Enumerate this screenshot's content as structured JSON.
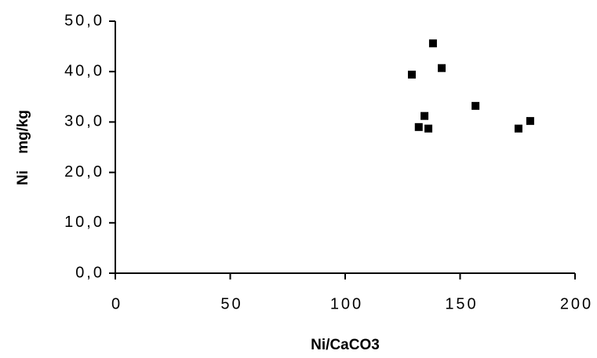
{
  "chart_data": {
    "type": "scatter",
    "x_label": "Ni/CaCO3",
    "y_label": "Ni    mg/kg",
    "series": [
      {
        "color": "#000000",
        "x": [
          129,
          138.2,
          142,
          132,
          134.5,
          136.2,
          156.7,
          175.4,
          180.5
        ],
        "values": [
          39.4,
          45.6,
          40.7,
          29.0,
          31.2,
          28.7,
          33.2,
          28.7,
          30.2
        ]
      }
    ],
    "xlim": [
      0,
      200
    ],
    "xticks": [
      0,
      50,
      100,
      150,
      200
    ],
    "ylim": [
      0,
      50
    ],
    "yticks": [
      {
        "value": 0,
        "label": "0,0"
      },
      {
        "value": 10,
        "label": "10,0"
      },
      {
        "value": 20,
        "label": "20,0"
      },
      {
        "value": 30,
        "label": "30,0"
      },
      {
        "value": 40,
        "label": "40,0"
      },
      {
        "value": 50,
        "label": "50,0"
      }
    ]
  }
}
